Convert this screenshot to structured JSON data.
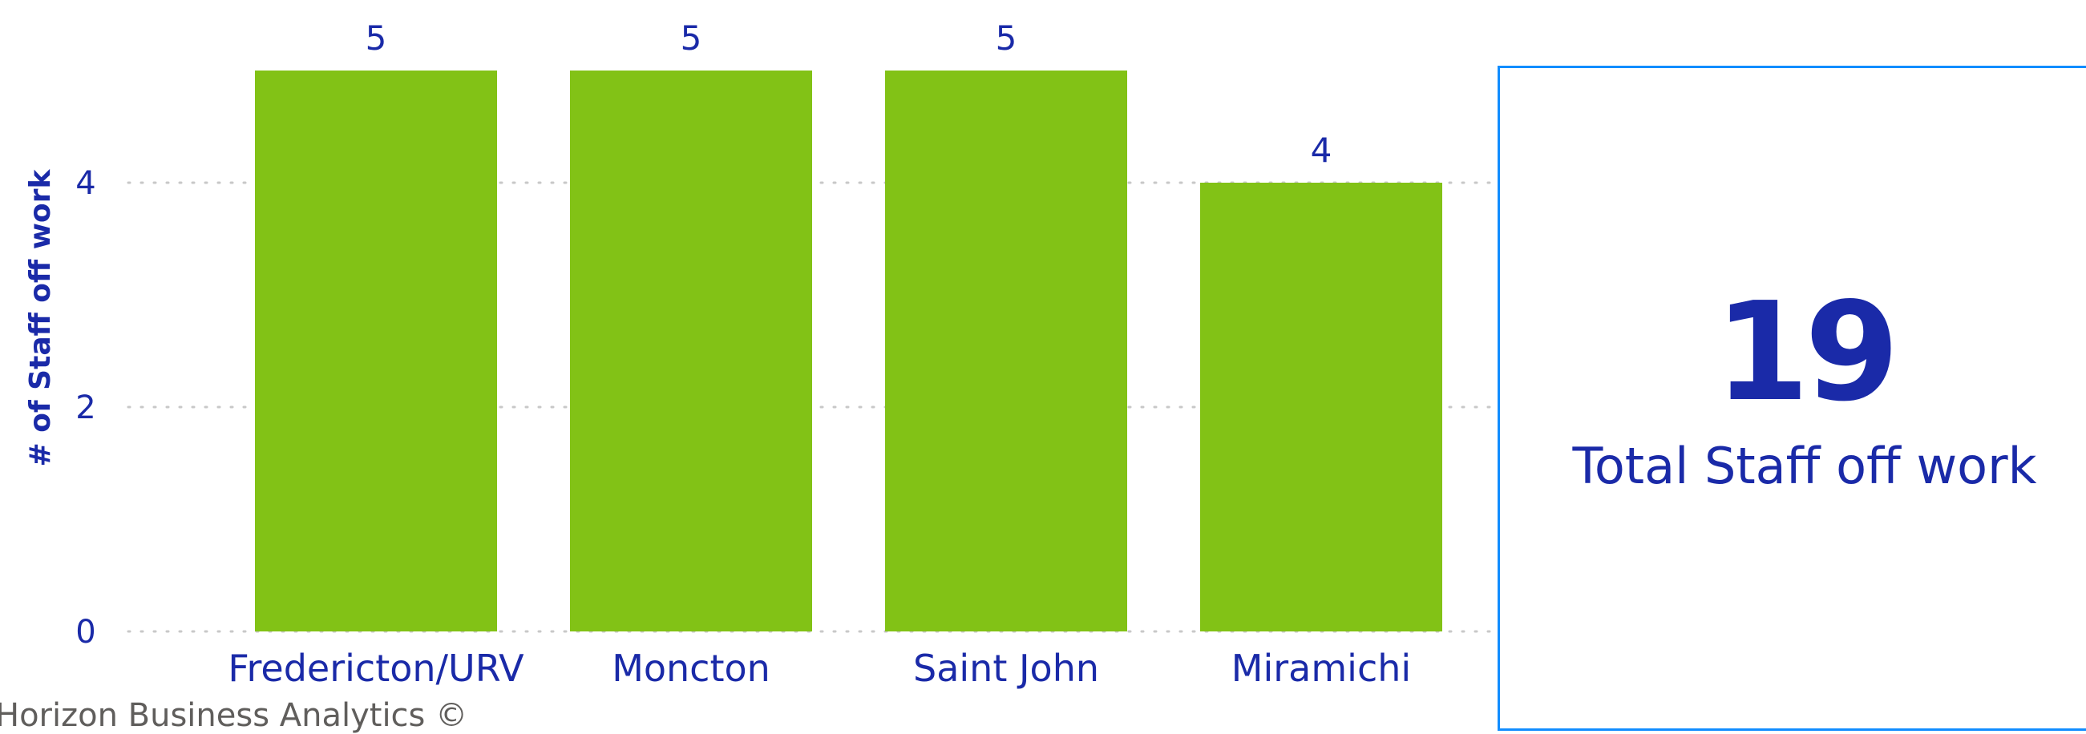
{
  "colors": {
    "bar": "#82c216",
    "text": "#1a2aa8",
    "grid": "#c8c8c8",
    "card_border": "#118dff",
    "footer": "#605e5c"
  },
  "chart_data": {
    "type": "bar",
    "categories": [
      "Fredericton/URV",
      "Moncton",
      "Saint John",
      "Miramichi"
    ],
    "values": [
      5,
      5,
      5,
      4
    ],
    "data_labels": [
      "5",
      "5",
      "5",
      "4"
    ],
    "ylabel": "# of Staff off work",
    "xlabel": "",
    "ylim": [
      0,
      5
    ],
    "yticks": [
      0,
      2,
      4
    ],
    "ytick_labels": [
      "0",
      "2",
      "4"
    ],
    "grid": true,
    "grid_style": "dotted"
  },
  "card": {
    "value": "19",
    "label": "Total Staff off work"
  },
  "footer": {
    "text": "Horizon Business Analytics ©"
  }
}
